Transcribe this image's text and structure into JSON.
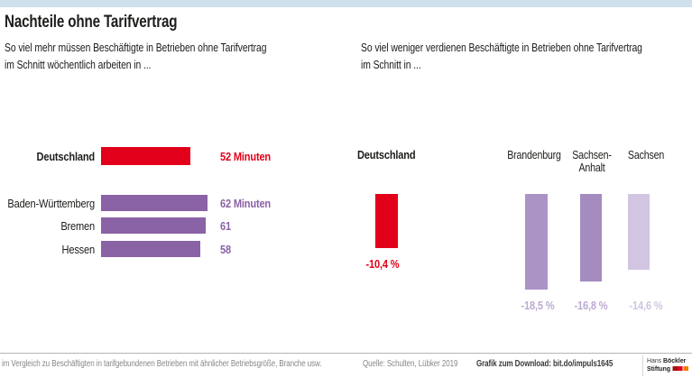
{
  "page": {
    "title": "Nachteile ohne Tarifvertrag"
  },
  "header": {
    "subtitle_left_line1": "So viel mehr müssen Beschäftigte in Betrieben ohne Tarifvertrag",
    "subtitle_left_line2": "im Schnitt wöchentlich arbeiten in ...",
    "subtitle_right_line1": "So viel weniger verdienen Beschäftigte in Betrieben ohne Tarifvertrag",
    "subtitle_right_line2": "im Schnitt in ..."
  },
  "chart_data": [
    {
      "type": "bar",
      "orientation": "horizontal",
      "title": "So viel mehr müssen Beschäftigte in Betrieben ohne Tarifvertrag im Schnitt wöchentlich arbeiten in ...",
      "unit": "Minuten pro Woche",
      "categories": [
        "Deutschland",
        "Baden-Württemberg",
        "Bremen",
        "Hessen"
      ],
      "values": [
        52,
        62,
        61,
        58
      ],
      "value_labels": [
        "52 Minuten",
        "62 Minuten",
        "61",
        "58"
      ],
      "colors": [
        "#e2001a",
        "#8a62a6",
        "#8a62a6",
        "#8a62a6"
      ],
      "label_colors": [
        "#e2001a",
        "#8a62a6",
        "#8a62a6",
        "#8a62a6"
      ],
      "xlim": [
        0,
        65
      ],
      "grid": false,
      "legend": false
    },
    {
      "type": "bar",
      "orientation": "vertical",
      "title": "So viel weniger verdienen Beschäftigte in Betrieben ohne Tarifvertrag im Schnitt in ...",
      "unit": "%",
      "categories": [
        "Deutschland",
        "Brandenburg",
        "Sachsen-Anhalt",
        "Sachsen"
      ],
      "values": [
        -10.4,
        -18.5,
        -16.8,
        -14.6
      ],
      "value_labels": [
        "-10,4 %",
        "-18,5 %",
        "-16,8 %",
        "-14,6 %"
      ],
      "colors": [
        "#e2001a",
        "#ab93c6",
        "#a48bc0",
        "#d2c5e2"
      ],
      "label_colors": [
        "#e2001a",
        "#bcaad2",
        "#bcaad2",
        "#d0c4e0"
      ],
      "ylim": [
        -20,
        0
      ],
      "grid": false,
      "legend": false
    }
  ],
  "footer": {
    "footnote": "im Vergleich zu Beschäftigten in tarifgebundenen Betrieben mit ähnlicher Betriebsgröße, Branche usw.",
    "source": "Quelle: Schulten, Lübker 2019",
    "download": "Grafik zum Download: bit.do/impuls1645",
    "logo": {
      "line1_regular": "Hans ",
      "line1_bold": "Böckler",
      "line2_bold": "Stiftung",
      "square_colors": [
        "#9e120f",
        "#e2001a",
        "#f07d00"
      ]
    }
  },
  "colors": {
    "topbar_blue": "#cee1eb",
    "accent_red": "#e2001a",
    "purple_dark": "#8a62a6",
    "text_black": "#1d1d1b",
    "footnote_gray": "#878787"
  }
}
